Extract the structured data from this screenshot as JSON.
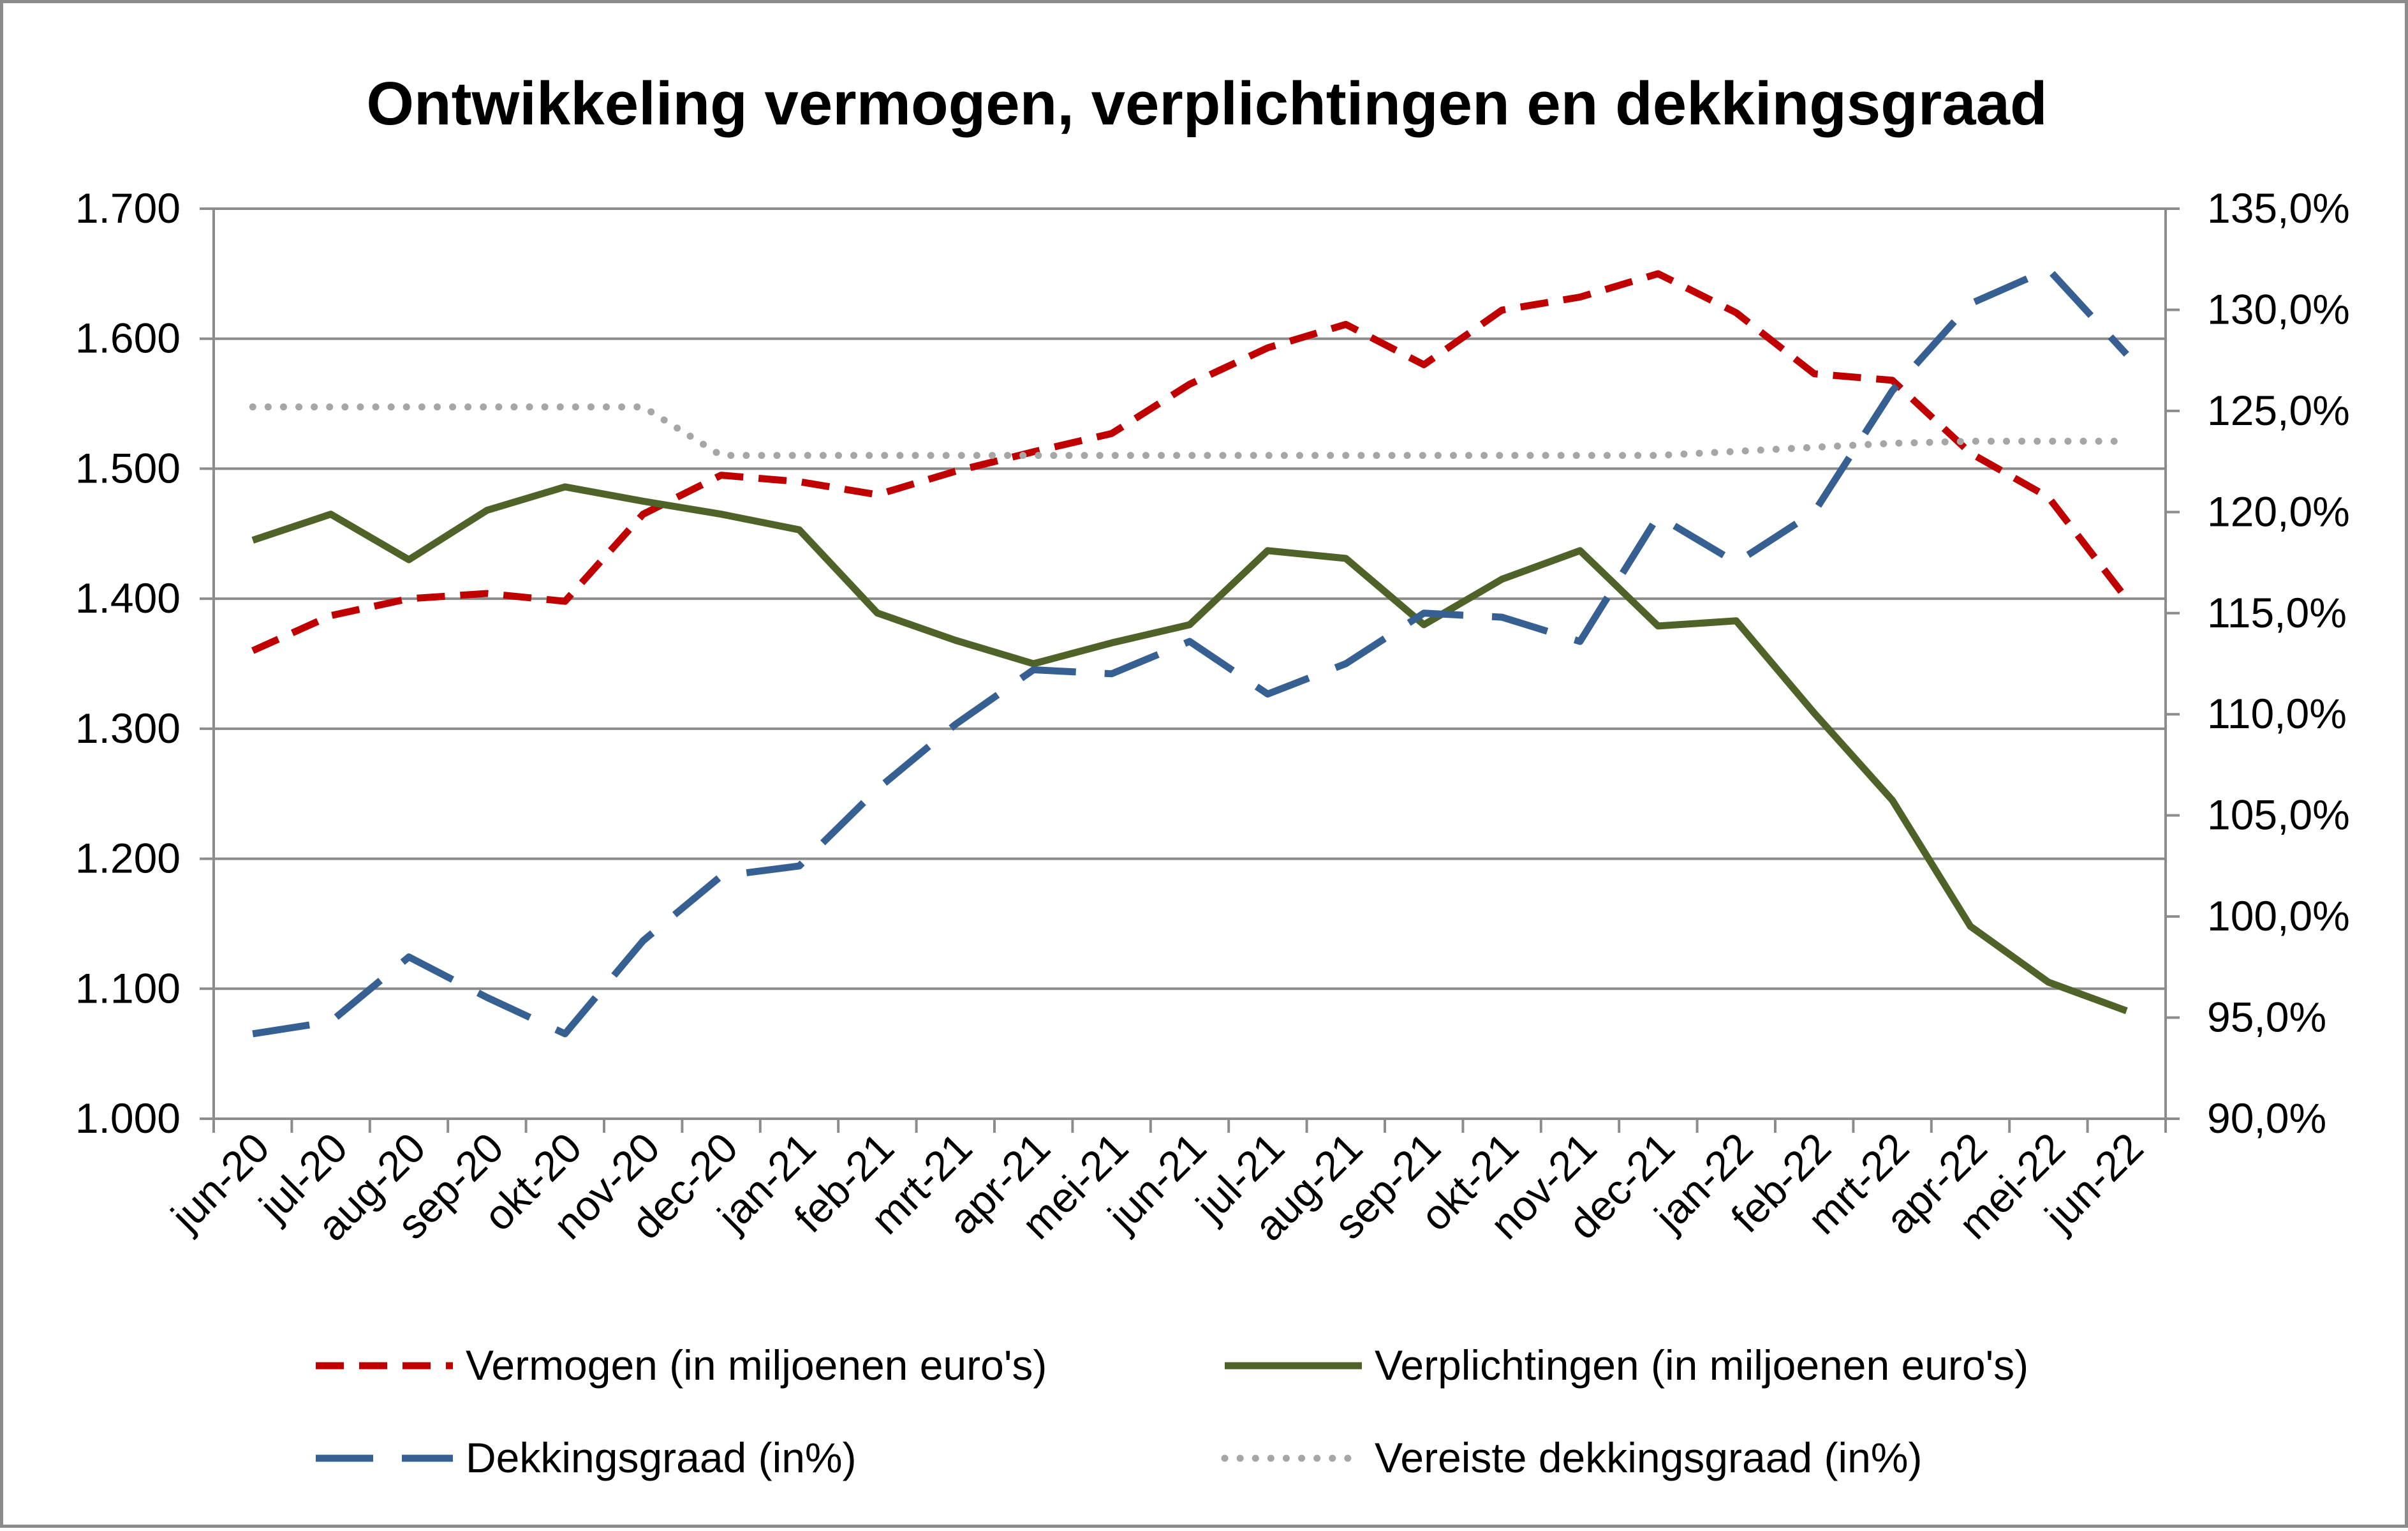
{
  "chart_data": {
    "type": "line",
    "title": "Ontwikkeling vermogen, verplichtingen en dekkingsgraad",
    "xlabel": "",
    "ylabel": "",
    "y2label": "",
    "categories": [
      "jun-20",
      "jul-20",
      "aug-20",
      "sep-20",
      "okt-20",
      "nov-20",
      "dec-20",
      "jan-21",
      "feb-21",
      "mrt-21",
      "apr-21",
      "mei-21",
      "jun-21",
      "jul-21",
      "aug-21",
      "sep-21",
      "okt-21",
      "nov-21",
      "dec-21",
      "jan-22",
      "feb-22",
      "mrt-22",
      "apr-22",
      "mei-22",
      "jun-22"
    ],
    "ylim": [
      1000,
      1700
    ],
    "yticks": [
      "1.000",
      "1.100",
      "1.200",
      "1.300",
      "1.400",
      "1.500",
      "1.600",
      "1.700"
    ],
    "y2lim": [
      90,
      135
    ],
    "y2ticks": [
      "90,0%",
      "95,0%",
      "100,0%",
      "105,0%",
      "110,0%",
      "115,0%",
      "120,0%",
      "125,0%",
      "130,0%",
      "135,0%"
    ],
    "grid": true,
    "legend_position": "bottom",
    "series": [
      {
        "name": "Vermogen (in miljoenen euro's)",
        "axis": "left",
        "style": "dashed",
        "color": "#c00000",
        "values": [
          1360,
          1387,
          1400,
          1404,
          1398,
          1465,
          1495,
          1490,
          1480,
          1498,
          1513,
          1527,
          1565,
          1593,
          1611,
          1580,
          1622,
          1632,
          1650,
          1620,
          1573,
          1568,
          1512,
          1478,
          1400
        ]
      },
      {
        "name": "Verplichtingen (in miljoenen euro's)",
        "axis": "left",
        "style": "solid",
        "color": "#4f6228",
        "values": [
          1445,
          1465,
          1430,
          1468,
          1486,
          1475,
          1465,
          1453,
          1389,
          1368,
          1350,
          1366,
          1380,
          1437,
          1431,
          1380,
          1415,
          1437,
          1379,
          1383,
          1312,
          1245,
          1148,
          1105,
          1083
        ]
      },
      {
        "name": "Dekkingsgraad (in%)",
        "axis": "right",
        "style": "longdash",
        "color": "#376092",
        "values": [
          94.2,
          94.8,
          98.0,
          96.0,
          94.2,
          98.8,
          102.0,
          102.5,
          106.3,
          109.5,
          112.2,
          112.0,
          113.6,
          111.0,
          112.5,
          115.0,
          114.8,
          113.6,
          119.8,
          117.5,
          120.0,
          126.0,
          130.3,
          132.0,
          127.8
        ]
      },
      {
        "name": "Vereiste dekkingsgraad (in%)",
        "axis": "right",
        "style": "dotted",
        "color": "#a6a6a6",
        "values": [
          125.2,
          125.2,
          125.2,
          125.2,
          125.2,
          125.2,
          122.8,
          122.8,
          122.8,
          122.8,
          122.8,
          122.8,
          122.8,
          122.8,
          122.8,
          122.8,
          122.8,
          122.8,
          122.8,
          123.0,
          123.2,
          123.4,
          123.5,
          123.5,
          123.5
        ]
      }
    ]
  }
}
